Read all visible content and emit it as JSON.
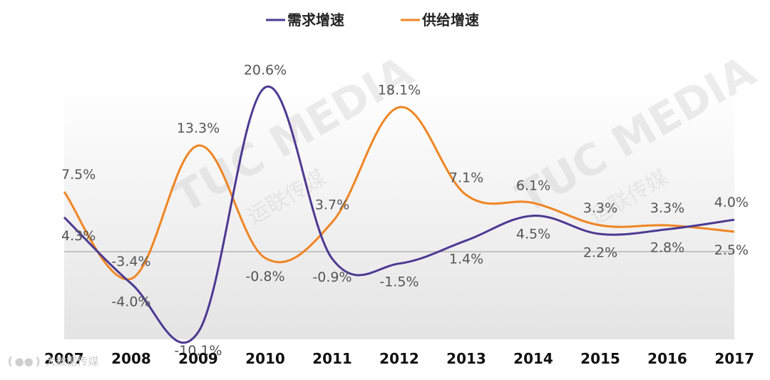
{
  "chart_data": {
    "type": "line",
    "categories": [
      "2007",
      "2008",
      "2009",
      "2010",
      "2011",
      "2012",
      "2013",
      "2014",
      "2015",
      "2016",
      "2017"
    ],
    "series": [
      {
        "name": "需求增速",
        "color": "#4b3a92",
        "values": [
          4.3,
          -4.0,
          -10.1,
          20.6,
          -0.9,
          -1.5,
          1.4,
          4.5,
          2.2,
          2.8,
          4.0
        ],
        "labels": [
          "4.3%",
          "-4.0%",
          "-10.1%",
          "20.6%",
          "-0.9%",
          "-1.5%",
          "1.4%",
          "4.5%",
          "2.2%",
          "2.8%",
          "4.0%"
        ]
      },
      {
        "name": "供给增速",
        "color": "#f08523",
        "values": [
          7.5,
          -3.4,
          13.3,
          -0.8,
          3.7,
          18.1,
          7.1,
          6.1,
          3.3,
          3.3,
          2.5
        ],
        "labels": [
          "7.5%",
          "-3.4%",
          "13.3%",
          "-0.8%",
          "3.7%",
          "18.1%",
          "7.1%",
          "6.1%",
          "3.3%",
          "3.3%",
          "2.5%"
        ]
      }
    ],
    "ylim": [
      -11,
      21
    ],
    "title": "",
    "xlabel": "",
    "ylabel": "",
    "grid": false,
    "legend_position": "top-center"
  },
  "watermark": {
    "brand": "TUC MEDIA",
    "brand_cn": "运联传媒",
    "corner_text": "大数据传媒"
  }
}
